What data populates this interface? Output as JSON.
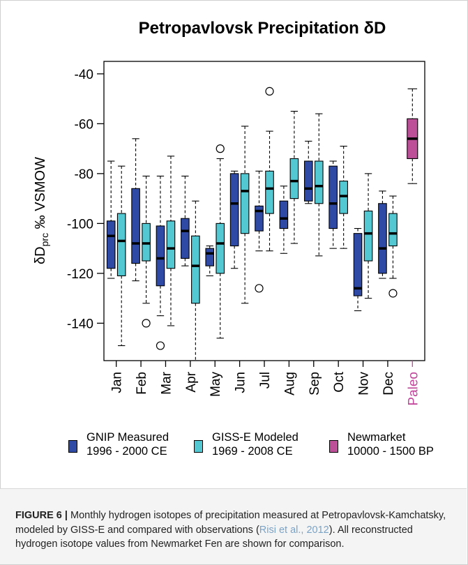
{
  "chart_data": {
    "type": "box",
    "title": "Petropavlovsk Precipitation δD",
    "ylabel": {
      "prefix": "δD",
      "subscript": "prc",
      "suffix": " ‰ VSMOW"
    },
    "ylim": [
      -155,
      -35
    ],
    "y_ticks": [
      -40,
      -60,
      -80,
      -100,
      -120,
      -140
    ],
    "categories": [
      "Jan",
      "Feb",
      "Mar",
      "Apr",
      "May",
      "Jun",
      "Jul",
      "Aug",
      "Sep",
      "Oct",
      "Nov",
      "Dec",
      "Paleo"
    ],
    "category_colors": {
      "default": "#000000",
      "Paleo": "#c0479a"
    },
    "grid": false,
    "series": [
      {
        "name": "GNIP Measured 1996 - 2000 CE",
        "color": "#2f4aa5",
        "boxes": [
          {
            "category": "Jan",
            "min": -122,
            "q1": -118,
            "median": -105,
            "q3": -99,
            "max": -75,
            "outliers": []
          },
          {
            "category": "Feb",
            "min": -123,
            "q1": -116,
            "median": -108,
            "q3": -86,
            "max": -66,
            "outliers": []
          },
          {
            "category": "Mar",
            "min": -137,
            "q1": -125,
            "median": -114,
            "q3": -101,
            "max": -81,
            "outliers": [
              -149
            ]
          },
          {
            "category": "Apr",
            "min": -117,
            "q1": -114,
            "median": -103,
            "q3": -98,
            "max": -81,
            "outliers": []
          },
          {
            "category": "May",
            "min": -121,
            "q1": -117,
            "median": -112,
            "q3": -110,
            "max": -109,
            "outliers": []
          },
          {
            "category": "Jun",
            "min": -118,
            "q1": -109,
            "median": -92,
            "q3": -80,
            "max": -79,
            "outliers": []
          },
          {
            "category": "Jul",
            "min": -111,
            "q1": -103,
            "median": -95,
            "q3": -93,
            "max": -79,
            "outliers": [
              -126
            ]
          },
          {
            "category": "Aug",
            "min": -112,
            "q1": -102,
            "median": -98,
            "q3": -91,
            "max": -85,
            "outliers": []
          },
          {
            "category": "Sep",
            "min": -92,
            "q1": -91,
            "median": -86,
            "q3": -75,
            "max": -67,
            "outliers": []
          },
          {
            "category": "Oct",
            "min": -110,
            "q1": -102,
            "median": -92,
            "q3": -77,
            "max": -75,
            "outliers": []
          },
          {
            "category": "Nov",
            "min": -135,
            "q1": -129,
            "median": -126,
            "q3": -104,
            "max": -102,
            "outliers": []
          },
          {
            "category": "Dec",
            "min": -122,
            "q1": -120,
            "median": -110,
            "q3": -92,
            "max": -87,
            "outliers": []
          }
        ]
      },
      {
        "name": "GISS-E Modeled 1969 - 2008 CE",
        "color": "#53c8d2",
        "boxes": [
          {
            "category": "Jan",
            "min": -149,
            "q1": -121,
            "median": -107,
            "q3": -96,
            "max": -77,
            "outliers": []
          },
          {
            "category": "Feb",
            "min": -132,
            "q1": -115,
            "median": -108,
            "q3": -100,
            "max": -81,
            "outliers": [
              -140
            ]
          },
          {
            "category": "Mar",
            "min": -141,
            "q1": -118,
            "median": -110,
            "q3": -99,
            "max": -73,
            "outliers": []
          },
          {
            "category": "Apr",
            "min": -155,
            "q1": -132,
            "median": -117,
            "q3": -105,
            "max": -91,
            "outliers": []
          },
          {
            "category": "May",
            "min": -146,
            "q1": -120,
            "median": -108,
            "q3": -100,
            "max": -74,
            "outliers": [
              -70
            ]
          },
          {
            "category": "Jun",
            "min": -132,
            "q1": -104,
            "median": -87,
            "q3": -80,
            "max": -61,
            "outliers": []
          },
          {
            "category": "Jul",
            "min": -111,
            "q1": -96,
            "median": -86,
            "q3": -79,
            "max": -63,
            "outliers": [
              -47
            ]
          },
          {
            "category": "Aug",
            "min": -108,
            "q1": -90,
            "median": -83,
            "q3": -74,
            "max": -55,
            "outliers": []
          },
          {
            "category": "Sep",
            "min": -113,
            "q1": -92,
            "median": -85,
            "q3": -75,
            "max": -56,
            "outliers": []
          },
          {
            "category": "Oct",
            "min": -110,
            "q1": -96,
            "median": -89,
            "q3": -83,
            "max": -69,
            "outliers": []
          },
          {
            "category": "Nov",
            "min": -130,
            "q1": -115,
            "median": -104,
            "q3": -95,
            "max": -80,
            "outliers": []
          },
          {
            "category": "Dec",
            "min": -122,
            "q1": -109,
            "median": -104,
            "q3": -96,
            "max": -89,
            "outliers": [
              -128
            ]
          }
        ]
      },
      {
        "name": "Newmarket 10000 - 1500 BP",
        "color": "#bd4f98",
        "boxes": [
          {
            "category": "Paleo",
            "min": -84,
            "q1": -74,
            "median": -66,
            "q3": -58,
            "max": -46,
            "outliers": []
          }
        ]
      }
    ],
    "legend": [
      {
        "line1": "GNIP Measured",
        "line2": "1996 - 2000 CE",
        "color": "#2f4aa5"
      },
      {
        "line1": "GISS-E Modeled",
        "line2": "1969 - 2008 CE",
        "color": "#53c8d2"
      },
      {
        "line1": "Newmarket",
        "line2": "10000 - 1500 BP",
        "color": "#bd4f98"
      }
    ],
    "legend_position": "bottom"
  },
  "caption": {
    "label": "FIGURE 6 |",
    "text_before": " Monthly hydrogen isotopes of precipitation measured at Petropavlovsk-Kamchatsky, modeled by GISS-E and compared with observations (",
    "ref": "Risi et al., 2012",
    "text_after": "). All reconstructed hydrogen isotope values from Newmarket Fen are shown for comparison."
  }
}
